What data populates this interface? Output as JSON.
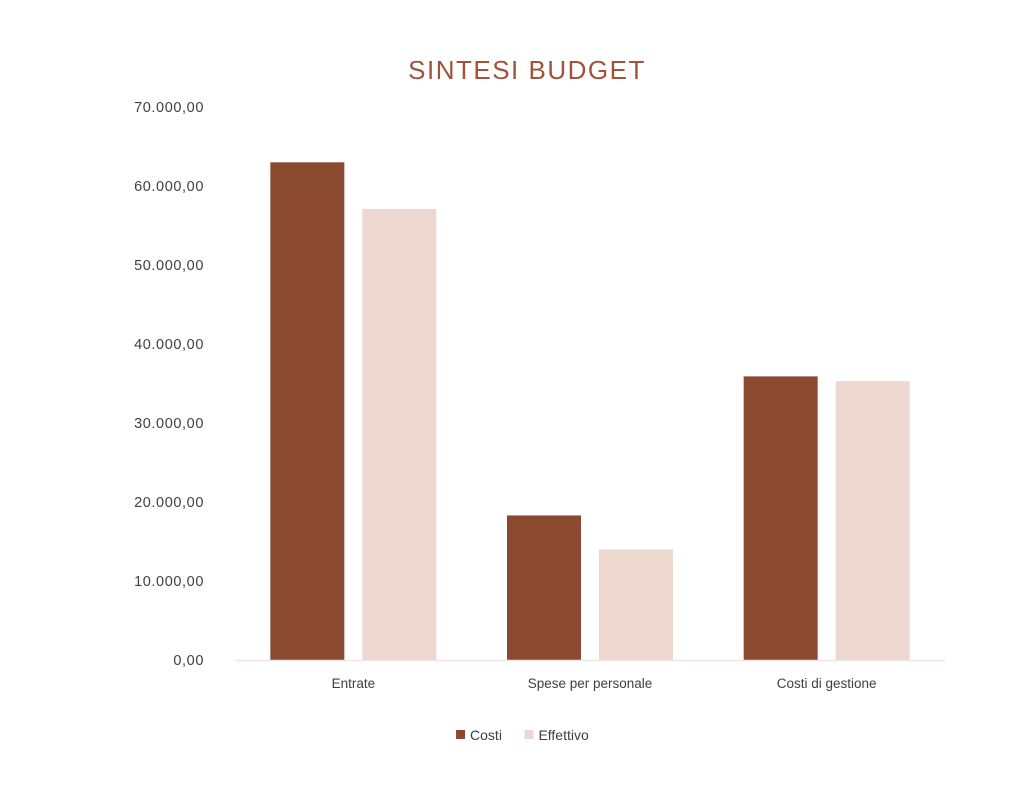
{
  "chart_data": {
    "type": "bar",
    "title": "SINTESI BUDGET",
    "xlabel": "",
    "ylabel": "",
    "categories": [
      "Entrate",
      "Spese per personale",
      "Costi di gestione"
    ],
    "series": [
      {
        "name": "Costi",
        "values": [
          63000,
          18300,
          35900
        ],
        "color": "#8B4A30"
      },
      {
        "name": "Effettivo",
        "values": [
          57100,
          14000,
          35300
        ],
        "color": "#EDD8CF"
      }
    ],
    "ylim": [
      0,
      70000
    ],
    "yticks": [
      0,
      10000,
      20000,
      30000,
      40000,
      50000,
      60000,
      70000
    ],
    "ytick_labels": [
      "0,00",
      "10.000,00",
      "20.000,00",
      "30.000,00",
      "40.000,00",
      "50.000,00",
      "60.000,00",
      "70.000,00"
    ],
    "grid": false,
    "legend_position": "bottom",
    "colors": {
      "title": "#A0533A",
      "tick_text": "#404040",
      "baseline": "#EDE6E3"
    }
  }
}
